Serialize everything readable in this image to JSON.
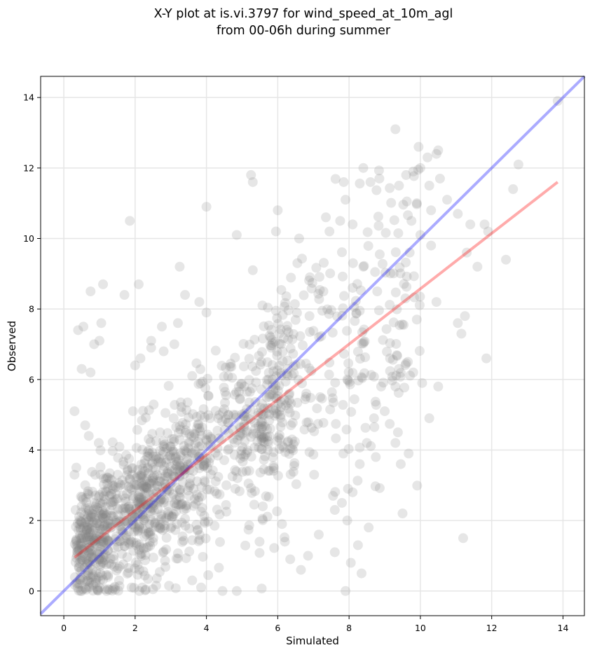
{
  "chart_data": {
    "type": "scatter",
    "title": [
      "X-Y plot at is.vi.3797 for wind_speed_at_10m_agl",
      "from 00-06h during summer"
    ],
    "xlabel": "Simulated",
    "ylabel": "Observed",
    "xlim": [
      -0.65,
      14.6
    ],
    "ylim": [
      -0.7,
      14.6
    ],
    "xticks": [
      0,
      2,
      4,
      6,
      8,
      10,
      12,
      14
    ],
    "yticks": [
      0,
      2,
      4,
      6,
      8,
      10,
      12,
      14
    ],
    "xtick_labels": [
      "0",
      "2",
      "4",
      "6",
      "8",
      "10",
      "12",
      "14"
    ],
    "ytick_labels": [
      "0",
      "2",
      "4",
      "6",
      "8",
      "10",
      "12",
      "14"
    ],
    "grid": true,
    "colors": {
      "points": "#808080",
      "identity_line": "#0000ff",
      "regression_line": "#ff0000",
      "grid": "#e6e6e6",
      "axes": "#000000"
    },
    "series": [
      {
        "kind": "scatter",
        "points": [
          [
            0.3,
            5.1
          ],
          [
            0.4,
            7.4
          ],
          [
            0.5,
            6.3
          ],
          [
            0.55,
            7.5
          ],
          [
            0.6,
            4.7
          ],
          [
            0.7,
            4.4
          ],
          [
            0.75,
            6.2
          ],
          [
            0.75,
            8.5
          ],
          [
            0.85,
            7.0
          ],
          [
            1.0,
            7.1
          ],
          [
            1.05,
            7.6
          ],
          [
            1.1,
            8.7
          ],
          [
            1.7,
            8.4
          ],
          [
            1.85,
            10.5
          ],
          [
            2.1,
            8.7
          ],
          [
            2.15,
            6.6
          ],
          [
            2.0,
            6.4
          ],
          [
            2.45,
            7.1
          ],
          [
            2.45,
            6.9
          ],
          [
            2.75,
            7.5
          ],
          [
            2.8,
            6.8
          ],
          [
            3.1,
            7.0
          ],
          [
            3.2,
            7.6
          ],
          [
            3.25,
            9.2
          ],
          [
            3.4,
            8.4
          ],
          [
            3.6,
            6.1
          ],
          [
            3.8,
            8.2
          ],
          [
            4.0,
            10.9
          ],
          [
            4.0,
            7.9
          ],
          [
            0.3,
            3.3
          ],
          [
            0.35,
            3.5
          ],
          [
            0.6,
            3.0
          ],
          [
            0.7,
            2.3
          ],
          [
            5.25,
            11.8
          ],
          [
            5.3,
            11.6
          ],
          [
            4.85,
            10.1
          ],
          [
            5.3,
            9.1
          ],
          [
            6.0,
            10.8
          ],
          [
            5.95,
            10.2
          ],
          [
            6.55,
            9.3
          ],
          [
            6.6,
            10.0
          ],
          [
            6.9,
            8.9
          ],
          [
            7.35,
            10.6
          ],
          [
            7.45,
            10.2
          ],
          [
            7.75,
            10.5
          ],
          [
            7.85,
            11.6
          ],
          [
            7.9,
            11.1
          ],
          [
            8.1,
            10.4
          ],
          [
            8.4,
            12.0
          ],
          [
            8.6,
            11.6
          ],
          [
            8.85,
            11.7
          ],
          [
            9.3,
            13.1
          ],
          [
            9.4,
            11.5
          ],
          [
            9.6,
            11.8
          ],
          [
            9.8,
            11.9
          ],
          [
            9.95,
            12.6
          ],
          [
            10.0,
            12.0
          ],
          [
            10.2,
            12.3
          ],
          [
            10.5,
            12.5
          ],
          [
            10.25,
            11.5
          ],
          [
            10.45,
            12.4
          ],
          [
            10.55,
            11.7
          ],
          [
            10.75,
            11.1
          ],
          [
            10.3,
            10.8
          ],
          [
            9.9,
            11.0
          ],
          [
            9.75,
            10.5
          ],
          [
            10.0,
            10.1
          ],
          [
            10.3,
            9.8
          ],
          [
            9.7,
            9.6
          ],
          [
            11.05,
            10.7
          ],
          [
            11.4,
            10.4
          ],
          [
            11.8,
            10.4
          ],
          [
            11.9,
            10.2
          ],
          [
            11.3,
            9.6
          ],
          [
            12.4,
            9.4
          ],
          [
            11.6,
            9.2
          ],
          [
            10.45,
            8.2
          ],
          [
            11.05,
            7.6
          ],
          [
            11.25,
            7.8
          ],
          [
            11.15,
            7.3
          ],
          [
            11.85,
            6.6
          ],
          [
            10.25,
            4.9
          ],
          [
            10.05,
            5.9
          ],
          [
            10.5,
            5.8
          ],
          [
            9.9,
            7.7
          ],
          [
            9.4,
            6.3
          ],
          [
            9.65,
            6.5
          ],
          [
            9.8,
            6.2
          ],
          [
            8.9,
            5.8
          ],
          [
            9.3,
            5.8
          ],
          [
            8.5,
            4.2
          ],
          [
            9.3,
            4.2
          ],
          [
            9.45,
            3.6
          ],
          [
            9.5,
            2.2
          ],
          [
            8.75,
            3.8
          ],
          [
            8.55,
            1.8
          ],
          [
            8.3,
            3.6
          ],
          [
            8.25,
            1.3
          ],
          [
            8.35,
            0.5
          ],
          [
            8.05,
            0.8
          ],
          [
            7.9,
            0.0
          ],
          [
            8.1,
            2.8
          ],
          [
            7.95,
            2.0
          ],
          [
            7.8,
            2.5
          ],
          [
            7.6,
            2.3
          ],
          [
            7.6,
            1.1
          ],
          [
            7.55,
            2.7
          ],
          [
            7.15,
            1.6
          ],
          [
            6.65,
            0.6
          ],
          [
            6.85,
            1.0
          ],
          [
            6.35,
            0.9
          ],
          [
            6.2,
            1.4
          ],
          [
            12.6,
            11.4
          ],
          [
            12.75,
            12.1
          ],
          [
            13.85,
            13.9
          ],
          [
            11.2,
            1.5
          ],
          [
            8.7,
            4.9
          ],
          [
            9.0,
            5.1
          ],
          [
            4.45,
            0.0
          ],
          [
            4.85,
            0.0
          ],
          [
            3.85,
            0.1
          ],
          [
            3.6,
            0.3
          ],
          [
            4.05,
            0.45
          ],
          [
            2.95,
            0.15
          ],
          [
            2.5,
            0.05
          ],
          [
            2.2,
            0.1
          ],
          [
            1.9,
            0.1
          ],
          [
            1.55,
            0.3
          ],
          [
            1.2,
            0.0
          ],
          [
            1.0,
            0.1
          ],
          [
            0.5,
            0.0
          ],
          [
            0.8,
            0.6
          ],
          [
            1.4,
            0.9
          ]
        ],
        "cluster_rule": "additional dense point cloud (~1400 points) concentrated along the fitted line, widest spread at mid-range, drawn with same style"
      },
      {
        "kind": "line",
        "role": "identity",
        "x": [
          -0.65,
          14.6
        ],
        "y": [
          -0.65,
          14.6
        ]
      },
      {
        "kind": "line",
        "role": "regression",
        "x": [
          0.3,
          13.85
        ],
        "y": [
          0.95,
          11.6
        ]
      }
    ]
  }
}
